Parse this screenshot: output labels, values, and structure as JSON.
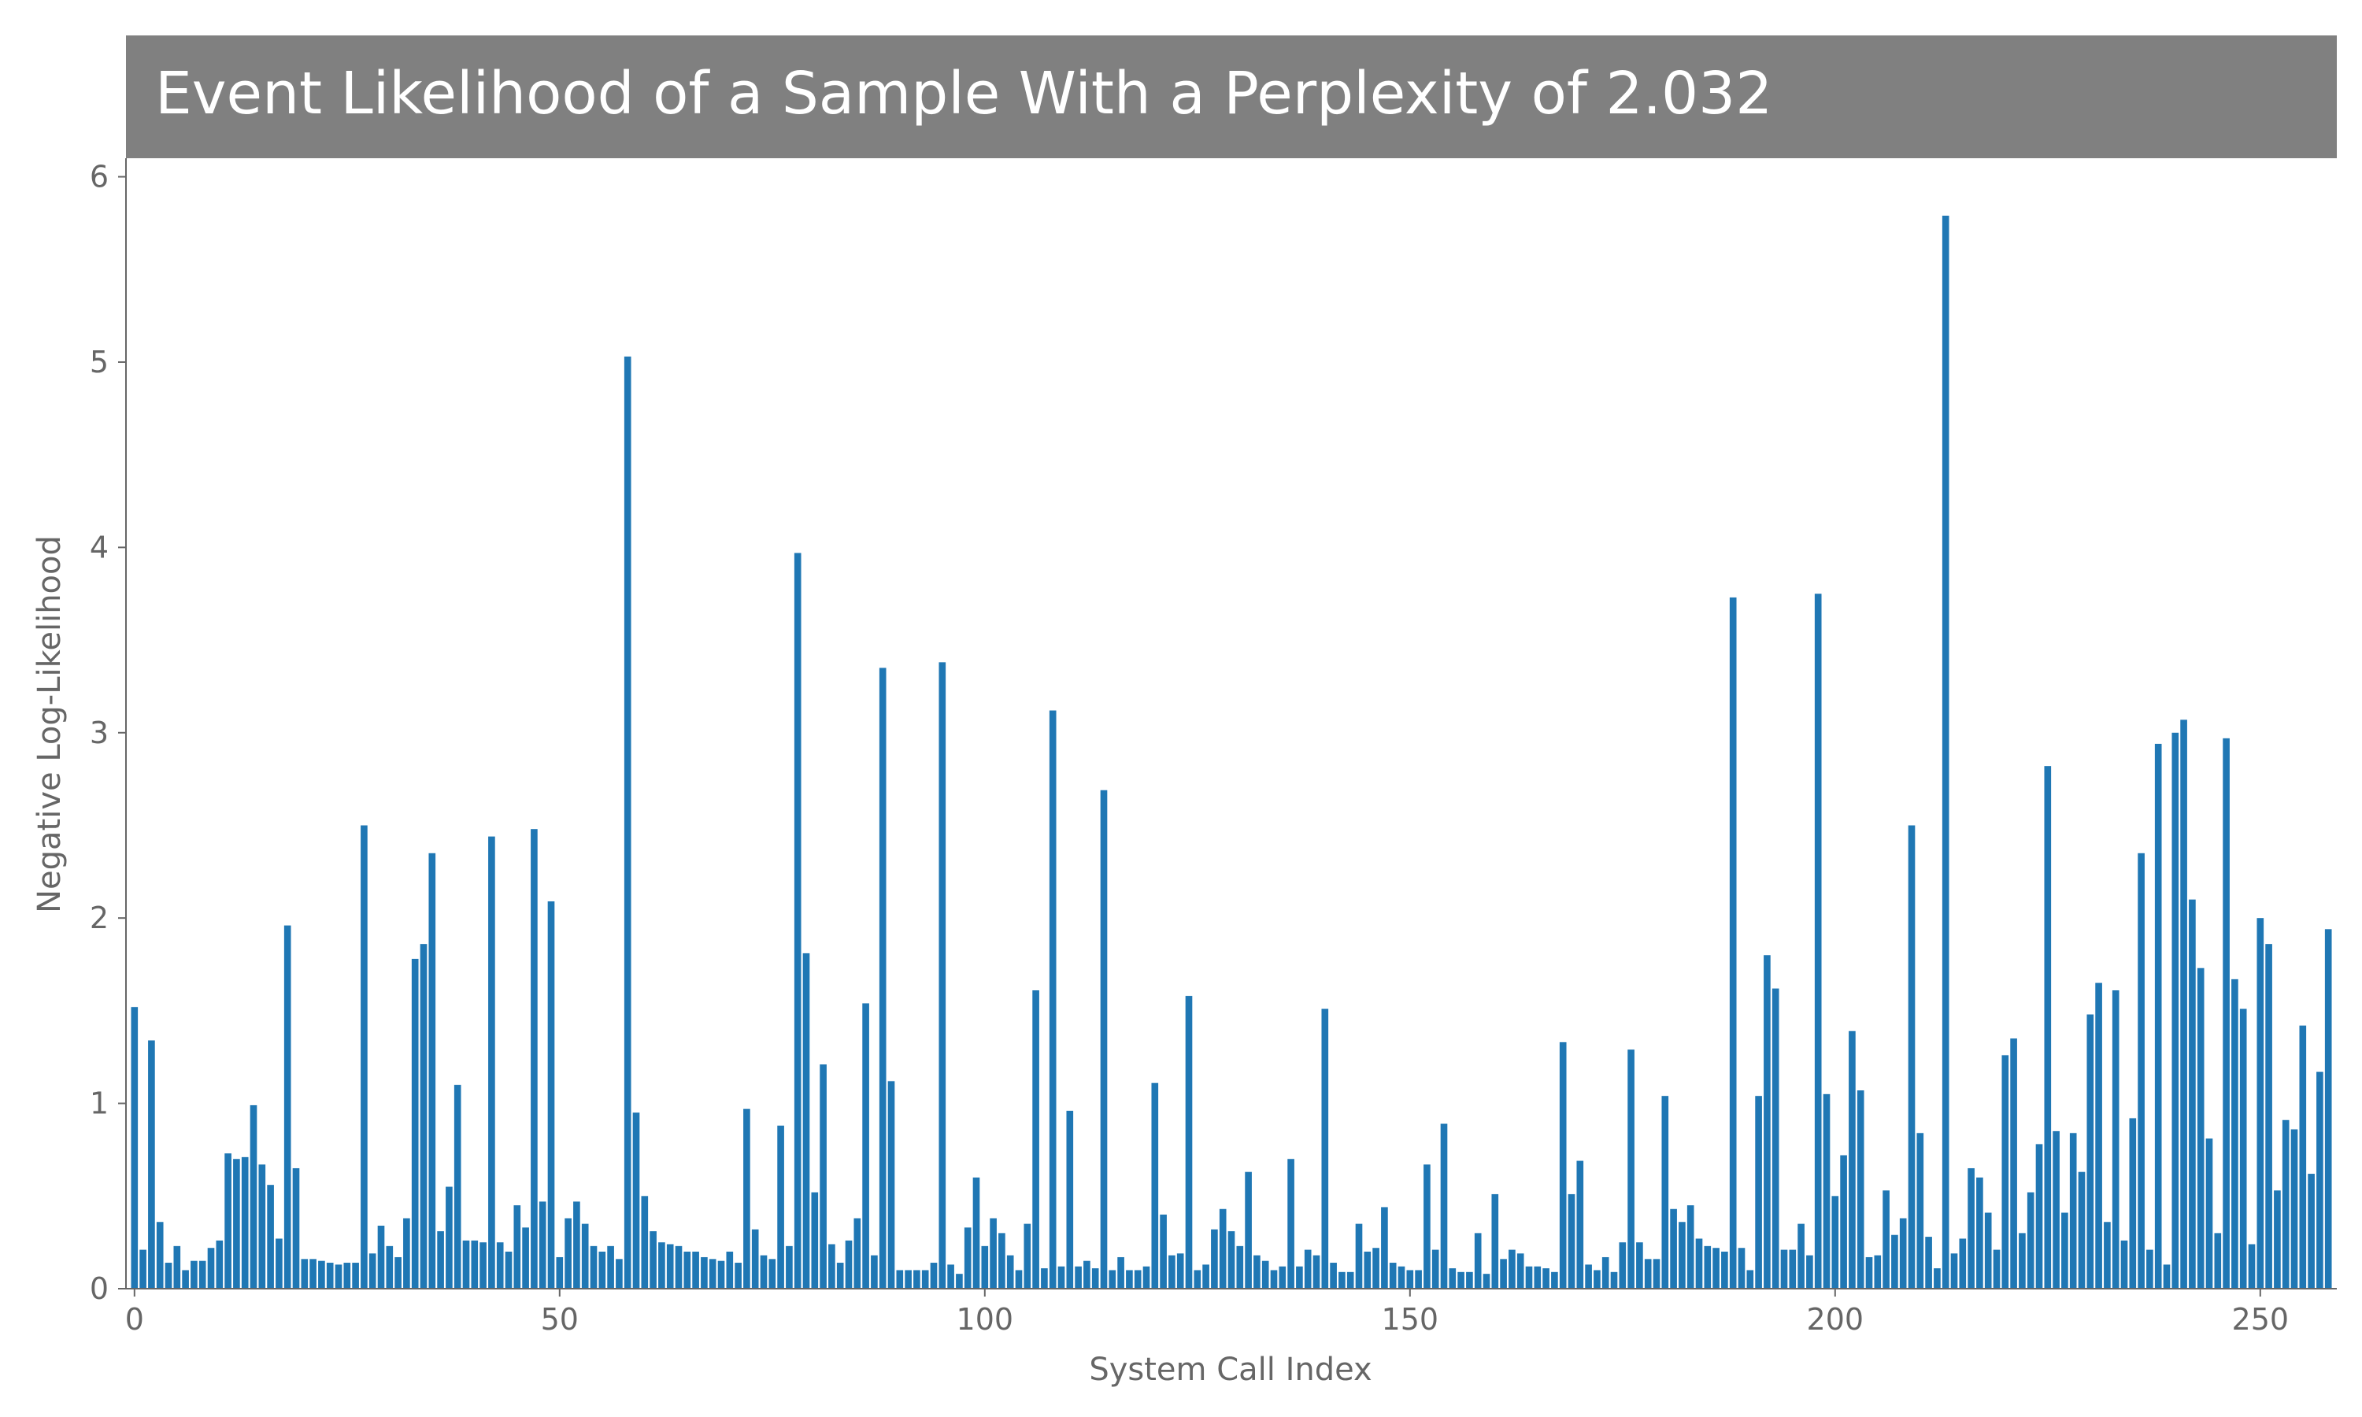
{
  "chart_data": {
    "type": "bar",
    "title": "Event Likelihood of a Sample With a Perplexity of 2.032",
    "xlabel": "System Call Index",
    "ylabel": "Negative Log-Likelihood",
    "xlim": [
      -1,
      259
    ],
    "ylim": [
      0,
      6.1
    ],
    "xticks": [
      0,
      50,
      100,
      150,
      200,
      250
    ],
    "yticks": [
      0,
      1,
      2,
      3,
      4,
      5,
      6
    ],
    "grid": false,
    "legend": "none",
    "bar_color": "#1f77b4",
    "title_bg": "#808080",
    "x": [
      0,
      1,
      2,
      3,
      4,
      5,
      6,
      7,
      8,
      9,
      10,
      11,
      12,
      13,
      14,
      15,
      16,
      17,
      18,
      19,
      20,
      21,
      22,
      23,
      24,
      25,
      26,
      27,
      28,
      29,
      30,
      31,
      32,
      33,
      34,
      35,
      36,
      37,
      38,
      39,
      40,
      41,
      42,
      43,
      44,
      45,
      46,
      47,
      48,
      49,
      50,
      51,
      52,
      53,
      54,
      55,
      56,
      57,
      58,
      59,
      60,
      61,
      62,
      63,
      64,
      65,
      66,
      67,
      68,
      69,
      70,
      71,
      72,
      73,
      74,
      75,
      76,
      77,
      78,
      79,
      80,
      81,
      82,
      83,
      84,
      85,
      86,
      87,
      88,
      89,
      90,
      91,
      92,
      93,
      94,
      95,
      96,
      97,
      98,
      99,
      100,
      101,
      102,
      103,
      104,
      105,
      106,
      107,
      108,
      109,
      110,
      111,
      112,
      113,
      114,
      115,
      116,
      117,
      118,
      119,
      120,
      121,
      122,
      123,
      124,
      125,
      126,
      127,
      128,
      129,
      130,
      131,
      132,
      133,
      134,
      135,
      136,
      137,
      138,
      139,
      140,
      141,
      142,
      143,
      144,
      145,
      146,
      147,
      148,
      149,
      150,
      151,
      152,
      153,
      154,
      155,
      156,
      157,
      158,
      159,
      160,
      161,
      162,
      163,
      164,
      165,
      166,
      167,
      168,
      169,
      170,
      171,
      172,
      173,
      174,
      175,
      176,
      177,
      178,
      179,
      180,
      181,
      182,
      183,
      184,
      185,
      186,
      187,
      188,
      189,
      190,
      191,
      192,
      193,
      194,
      195,
      196,
      197,
      198,
      199,
      200,
      201,
      202,
      203,
      204,
      205,
      206,
      207,
      208,
      209,
      210,
      211,
      212,
      213,
      214,
      215,
      216,
      217,
      218,
      219,
      220,
      221,
      222,
      223,
      224,
      225,
      226,
      227,
      228,
      229,
      230,
      231,
      232,
      233,
      234,
      235,
      236,
      237,
      238,
      239,
      240,
      241,
      242,
      243,
      244,
      245,
      246,
      247,
      248,
      249,
      250,
      251,
      252,
      253,
      254,
      255,
      256,
      257,
      258
    ],
    "values": [
      1.52,
      0.21,
      1.34,
      0.36,
      0.14,
      0.23,
      0.1,
      0.15,
      0.15,
      0.22,
      0.26,
      0.73,
      0.7,
      0.71,
      0.99,
      0.67,
      0.56,
      0.27,
      1.96,
      0.65,
      0.16,
      0.16,
      0.15,
      0.14,
      0.13,
      0.14,
      0.14,
      2.5,
      0.19,
      0.34,
      0.23,
      0.17,
      0.38,
      1.78,
      1.86,
      2.35,
      0.31,
      0.55,
      1.1,
      0.26,
      0.26,
      0.25,
      2.44,
      0.25,
      0.2,
      0.45,
      0.33,
      2.48,
      0.47,
      2.09,
      0.17,
      0.38,
      0.47,
      0.35,
      0.23,
      0.2,
      0.23,
      0.16,
      5.03,
      0.95,
      0.5,
      0.31,
      0.25,
      0.24,
      0.23,
      0.2,
      0.2,
      0.17,
      0.16,
      0.15,
      0.2,
      0.14,
      0.97,
      0.32,
      0.18,
      0.16,
      0.88,
      0.23,
      3.97,
      1.81,
      0.52,
      1.21,
      0.24,
      0.14,
      0.26,
      0.38,
      1.54,
      0.18,
      3.35,
      1.12,
      0.1,
      0.1,
      0.1,
      0.1,
      0.14,
      3.38,
      0.13,
      0.08,
      0.33,
      0.6,
      0.23,
      0.38,
      0.3,
      0.18,
      0.1,
      0.35,
      1.61,
      0.11,
      3.12,
      0.12,
      0.96,
      0.12,
      0.15,
      0.11,
      2.69,
      0.1,
      0.17,
      0.1,
      0.1,
      0.12,
      1.11,
      0.4,
      0.18,
      0.19,
      1.58,
      0.1,
      0.13,
      0.32,
      0.43,
      0.31,
      0.23,
      0.63,
      0.18,
      0.15,
      0.1,
      0.12,
      0.7,
      0.12,
      0.21,
      0.18,
      1.51,
      0.14,
      0.09,
      0.09,
      0.35,
      0.2,
      0.22,
      0.44,
      0.14,
      0.12,
      0.1,
      0.1,
      0.67,
      0.21,
      0.89,
      0.11,
      0.09,
      0.09,
      0.3,
      0.08,
      0.51,
      0.16,
      0.21,
      0.19,
      0.12,
      0.12,
      0.11,
      0.09,
      1.33,
      0.51,
      0.69,
      0.13,
      0.1,
      0.17,
      0.09,
      0.25,
      1.29,
      0.25,
      0.16,
      0.16,
      1.04,
      0.43,
      0.36,
      0.45,
      0.27,
      0.23,
      0.22,
      0.2,
      3.73,
      0.22,
      0.1,
      1.04,
      1.8,
      1.62,
      0.21,
      0.21,
      0.35,
      0.18,
      3.75,
      1.05,
      0.5,
      0.72,
      1.39,
      1.07,
      0.17,
      0.18,
      0.53,
      0.29,
      0.38,
      2.5,
      0.84,
      0.28,
      0.11,
      5.79,
      0.19,
      0.27,
      0.65,
      0.6,
      0.41,
      0.21,
      1.26,
      1.35,
      0.3,
      0.52,
      0.78,
      2.82,
      0.85,
      0.41,
      0.84,
      0.63,
      1.48,
      1.65,
      0.36,
      1.61,
      0.26,
      0.92,
      2.35,
      0.21,
      2.94,
      0.13,
      3.0,
      3.07,
      2.1,
      1.73,
      0.81,
      0.3,
      2.97,
      1.67,
      1.51,
      0.24,
      2.0,
      1.86,
      0.53,
      0.91,
      0.86,
      1.42,
      0.62,
      1.17,
      1.94
    ]
  }
}
